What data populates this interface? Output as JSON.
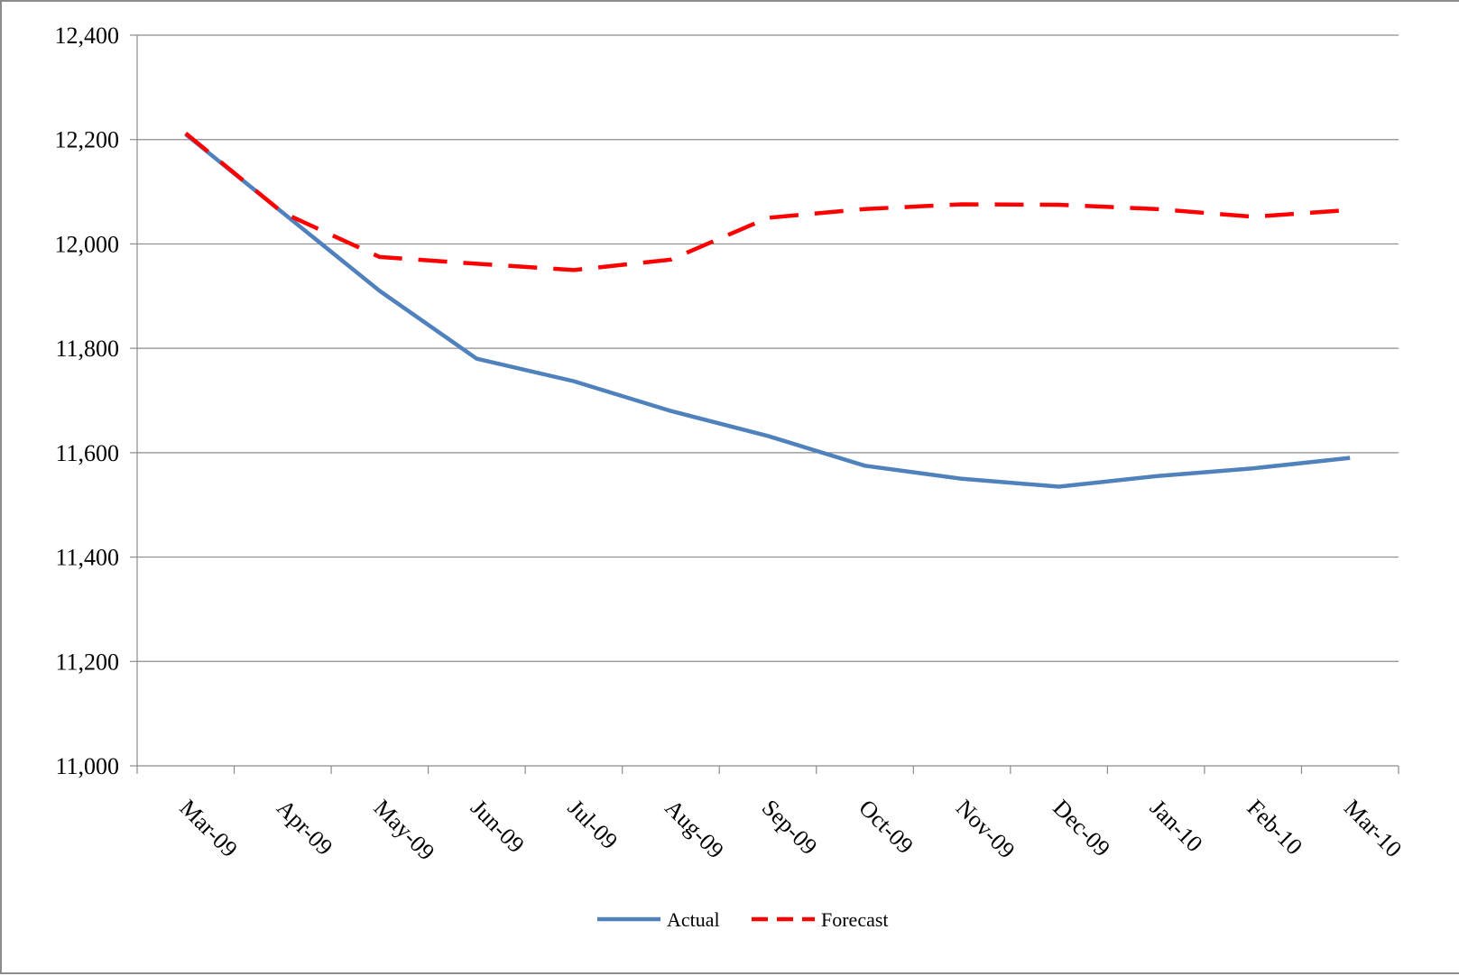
{
  "chart_data": {
    "type": "line",
    "title": "",
    "xlabel": "",
    "ylabel": "",
    "categories": [
      "Mar-09",
      "Apr-09",
      "May-09",
      "Jun-09",
      "Jul-09",
      "Aug-09",
      "Sep-09",
      "Oct-09",
      "Nov-09",
      "Dec-09",
      "Jan-10",
      "Feb-10",
      "Mar-10"
    ],
    "ylim": [
      11000,
      12400
    ],
    "yticks": [
      11000,
      11200,
      11400,
      11600,
      11800,
      12000,
      12200,
      12400
    ],
    "ytick_labels": [
      "11,000",
      "11,200",
      "11,400",
      "11,600",
      "11,800",
      "12,000",
      "12,200",
      "12,400"
    ],
    "grid": true,
    "legend_position": "bottom",
    "series": [
      {
        "name": "Actual",
        "color": "#4f81bd",
        "style": "solid",
        "values": [
          12210,
          12060,
          11910,
          11780,
          11737,
          11680,
          11632,
          11575,
          11550,
          11535,
          11555,
          11570,
          11590
        ]
      },
      {
        "name": "Forecast",
        "color": "#ff0000",
        "style": "dashed",
        "values": [
          12212,
          12060,
          11975,
          11962,
          11950,
          11970,
          12050,
          12067,
          12076,
          12075,
          12067,
          12052,
          12065
        ]
      }
    ]
  }
}
